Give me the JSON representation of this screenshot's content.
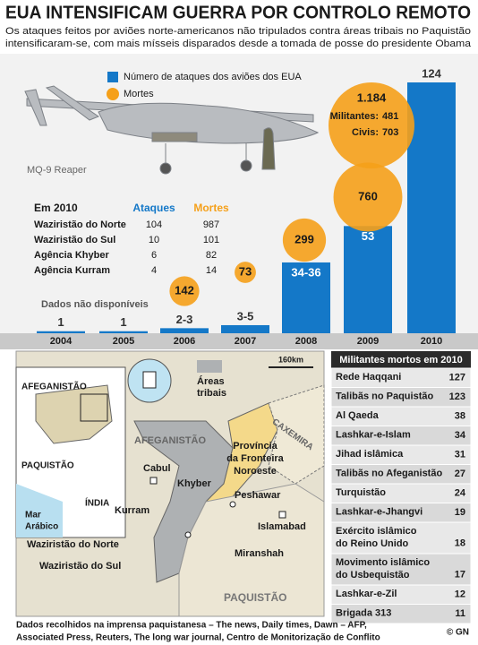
{
  "header": {
    "title": "EUA INTENSIFICAM GUERRA POR CONTROLO REMOTO",
    "subtitle_lines": [
      "Os ataques feitos por aviões norte-americanos não tripulados contra áreas tribais no Paquistão",
      "intensificaram-se, com mais mísseis disparados desde a tomada de posse do presidente Obama"
    ]
  },
  "chart_data": {
    "type": "bar",
    "categories": [
      "2004",
      "2005",
      "2006",
      "2007",
      "2008",
      "2009",
      "2010"
    ],
    "series": [
      {
        "name": "Número de ataques dos aviões dos EUA",
        "color": "#1478c8",
        "values": [
          1,
          1,
          2.5,
          4,
          35,
          53,
          124
        ],
        "value_labels": [
          "1",
          "1",
          "2-3",
          "3-5",
          "34-36",
          "53",
          "124"
        ]
      },
      {
        "name": "Mortes",
        "color": "#f5a01a",
        "values": [
          null,
          null,
          142,
          73,
          299,
          760,
          1184
        ],
        "value_labels": [
          null,
          null,
          "142",
          "73",
          "299",
          "760",
          "1.184"
        ]
      }
    ],
    "breakdown_2010": {
      "militantes_label": "Militantes:",
      "militantes": 481,
      "civis_label": "Civis:",
      "civis": 703
    },
    "annotation": "Dados não disponíveis",
    "aircraft_label": "MQ-9 Reaper"
  },
  "table_2010": {
    "title": "Em 2010",
    "headers": [
      "Ataques",
      "Mortes"
    ],
    "rows": [
      [
        "Waziristão do Norte",
        "104",
        "987"
      ],
      [
        "Waziristão do Sul",
        "10",
        "101"
      ],
      [
        "Agência Khyber",
        "6",
        "82"
      ],
      [
        "Agência Kurram",
        "4",
        "14"
      ]
    ]
  },
  "militants_table": {
    "title": "Militantes mortos em 2010",
    "rows": [
      {
        "name": [
          "Rede Haqqani"
        ],
        "value": "127"
      },
      {
        "name": [
          "Talibãs no Paquistão"
        ],
        "value": "123"
      },
      {
        "name": [
          "Al Qaeda"
        ],
        "value": "38"
      },
      {
        "name": [
          "Lashkar-e-Islam"
        ],
        "value": "34"
      },
      {
        "name": [
          "Jihad islâmica"
        ],
        "value": "31"
      },
      {
        "name": [
          "Talibãs no Afeganistão"
        ],
        "value": "27"
      },
      {
        "name": [
          "Turquistão"
        ],
        "value": "24"
      },
      {
        "name": [
          "Lashkar-e-Jhangvi"
        ],
        "value": "19"
      },
      {
        "name": [
          "Exército islâmico",
          "do Reino Unido"
        ],
        "value": "18"
      },
      {
        "name": [
          "Movimento islâmico",
          "do Usbequistão"
        ],
        "value": "17"
      },
      {
        "name": [
          "Lashkar-e-Zil"
        ],
        "value": "12"
      },
      {
        "name": [
          "Brigada 313"
        ],
        "value": "11"
      }
    ]
  },
  "map": {
    "inset_afghanistan": "AFEGANISTÃO",
    "inset_pakistan": "PAQUISTÃO",
    "inset_india": "ÍNDIA",
    "inset_sea": [
      "Mar",
      "Arábico"
    ],
    "legend_tribal": [
      "Áreas",
      "tribais"
    ],
    "scale": "160km",
    "kashmir": "CAXEMIRA",
    "afghanistan": "AFEGANISTÃO",
    "province": [
      "Província",
      "da Fronteira",
      "Noroeste"
    ],
    "cabul": "Cabul",
    "khyber": "Khyber",
    "peshawar": "Peshawar",
    "kurram": "Kurram",
    "islamabad": "Islamabad",
    "north_waziristan": "Waziristão do Norte",
    "miranshah": "Miranshah",
    "south_waziristan": "Waziristão do Sul",
    "pakistan": "PAQUISTÃO"
  },
  "footer": {
    "source_lines": [
      "Dados recolhidos na imprensa paquistanesa – The news, Daily times, Dawn – AFP,",
      "Associated Press, Reuters, The long war journal, Centro de Monitorização de Conflito"
    ],
    "credit": "© GN"
  }
}
